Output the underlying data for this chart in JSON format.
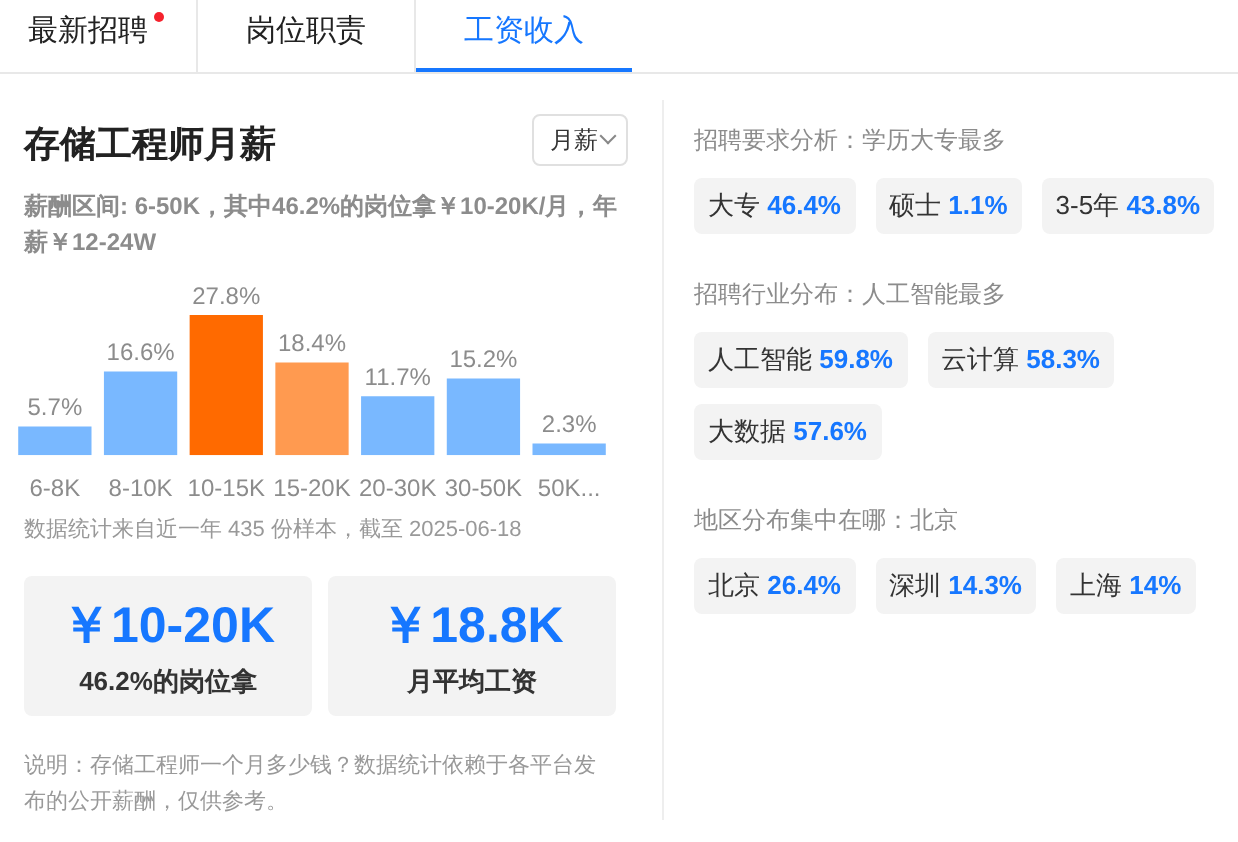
{
  "chart_data": [
    {
      "type": "other",
      "categories": [
        "最新招聘",
        "岗位职责",
        "工资收入"
      ]
    },
    {
      "type": "bar",
      "title": "存储工程师月薪",
      "subtitle": "薪酬区间: 6-50K，其中46.2%的岗位拿￥10-20K/月，年薪￥12-24W",
      "categories": [
        "6-8K",
        "8-10K",
        "10-15K",
        "15-20K",
        "20-30K",
        "30-50K",
        "50K..."
      ],
      "values": [
        5.7,
        16.6,
        27.8,
        18.4,
        11.7,
        15.2,
        2.3
      ],
      "value_labels": [
        "5.7%",
        "16.6%",
        "27.8%",
        "18.4%",
        "11.7%",
        "15.2%",
        "2.3%"
      ],
      "colors": [
        "#79b8ff",
        "#79b8ff",
        "#ff6a00",
        "#ff9a50",
        "#79b8ff",
        "#79b8ff",
        "#79b8ff"
      ],
      "tick_labels": "x",
      "annotations": [
        "月薪",
        "数据统计来自近一年 435 份样本，截至 2025-06-18",
        "说明：存储工程师一个月多少钱？数据统计依赖于各平台发布的公开薪酬，仅供参考。"
      ]
    },
    {
      "type": "other",
      "categories": [
        "46.2%的岗位拿",
        "月平均工资"
      ],
      "value_labels": [
        "￥10-20K",
        "￥18.8K"
      ]
    },
    {
      "type": "other",
      "title": "招聘要求分析：学历大专最多",
      "categories": [
        "大专",
        "硕士",
        "3-5年"
      ],
      "value_labels": [
        "46.4%",
        "1.1%",
        "43.8%"
      ]
    },
    {
      "type": "other",
      "title": "招聘行业分布：人工智能最多",
      "categories": [
        "人工智能",
        "云计算",
        "大数据"
      ],
      "value_labels": [
        "59.8%",
        "58.3%",
        "57.6%"
      ]
    },
    {
      "type": "other",
      "title": "地区分布集中在哪：北京",
      "categories": [
        "北京",
        "深圳",
        "上海"
      ],
      "value_labels": [
        "26.4%",
        "14.3%",
        "14%"
      ]
    }
  ]
}
